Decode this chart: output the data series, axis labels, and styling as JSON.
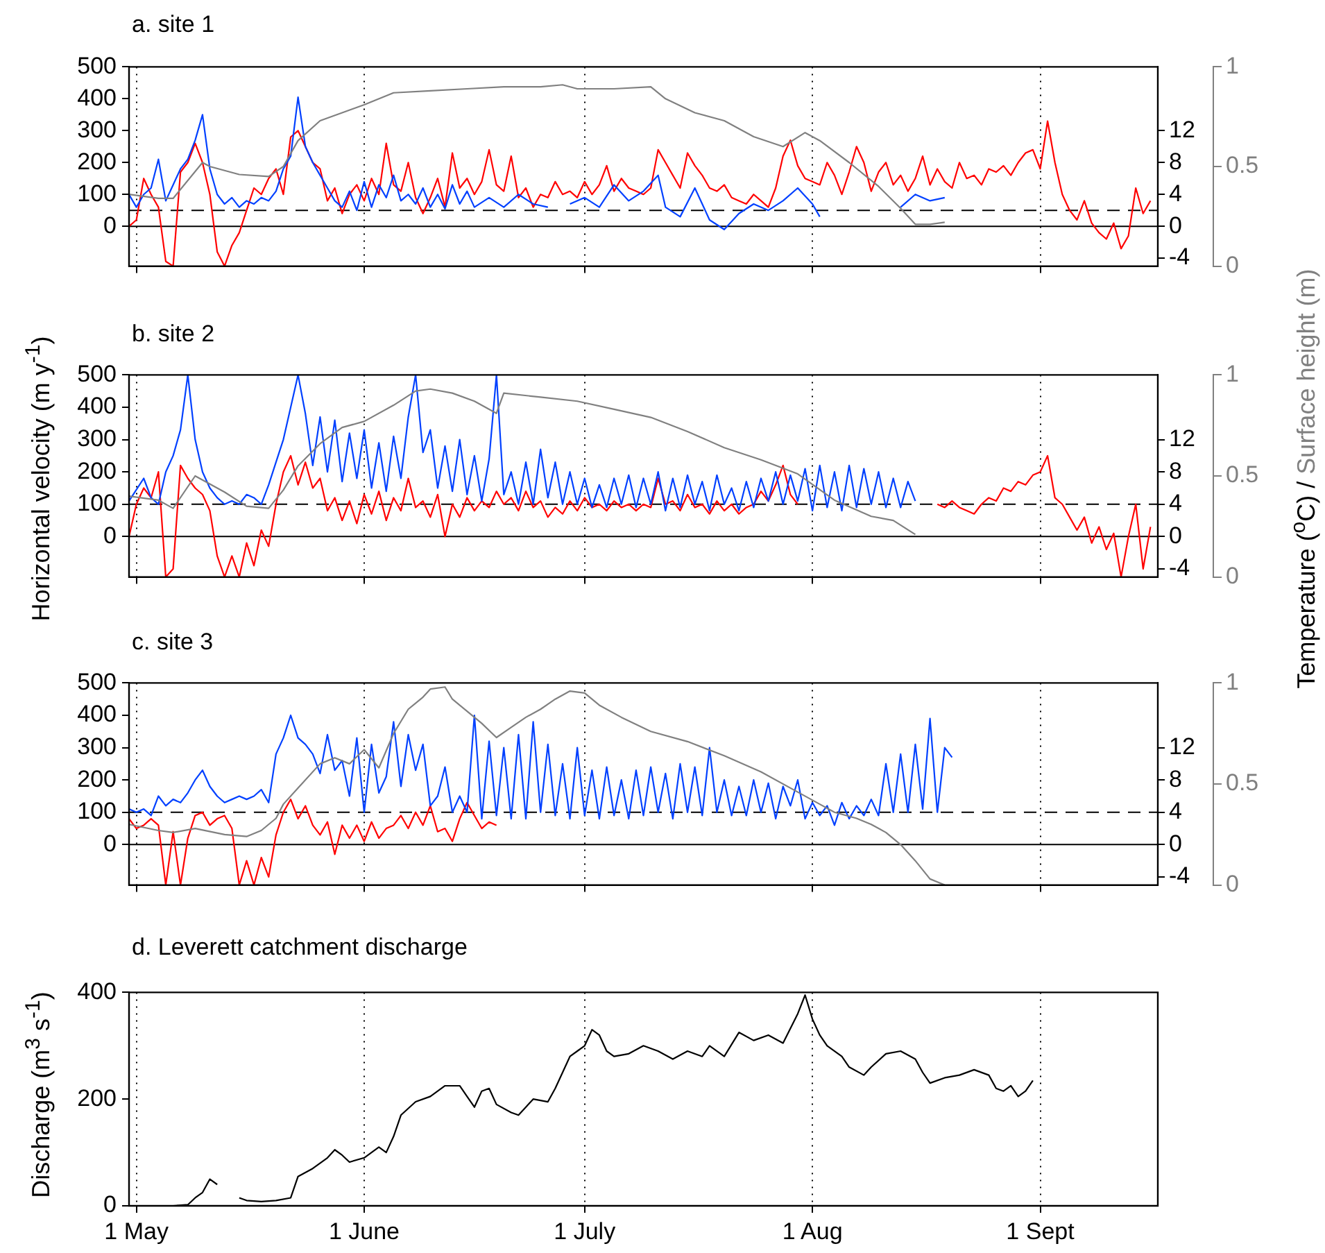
{
  "chart_data": [
    {
      "type": "line",
      "title": "a. site 1",
      "xlim": [
        "--04-30",
        "--09-17"
      ],
      "xticks": [
        {
          "value": "--05-01",
          "label": null
        },
        {
          "value": "--06-01",
          "label": null
        },
        {
          "value": "--07-01",
          "label": null
        },
        {
          "value": "--08-01",
          "label": null
        },
        {
          "value": "--09-01",
          "label": null
        }
      ],
      "ylim": [
        -125,
        500
      ],
      "yticks": [
        0,
        100,
        200,
        300,
        400,
        500
      ],
      "y2lim": [
        -5,
        20
      ],
      "y2ticks": [
        -4,
        0,
        4,
        8,
        12
      ],
      "y3lim": [
        0,
        1
      ],
      "y3ticks": [
        0,
        0.5,
        1
      ],
      "grid": "x",
      "tick_labels": "y",
      "ref_lines": [
        {
          "axis": "y",
          "value": 0,
          "color": "#000000",
          "line_style": "solid"
        },
        {
          "axis": "y",
          "value": 50,
          "color": "#000000",
          "line_style": "dashed"
        }
      ],
      "series": [
        {
          "color": "#ff0000",
          "axis": "y2",
          "x": [
            "--04-30",
            "--05-01",
            "--05-02",
            "--05-03",
            "--05-04",
            "--05-05",
            "--05-06",
            "--05-07",
            "--05-08",
            "--05-09",
            "--05-10",
            "--05-11",
            "--05-12",
            "--05-13",
            "--05-14",
            "--05-15",
            "--05-16",
            "--05-17",
            "--05-18",
            "--05-19",
            "--05-20",
            "--05-21",
            "--05-22",
            "--05-23",
            "--05-24",
            "--05-25",
            "--05-26",
            "--05-27",
            "--05-28",
            "--05-29",
            "--05-30",
            "--05-31",
            "--06-01",
            "--06-02",
            "--06-03",
            "--06-04",
            "--06-05",
            "--06-06",
            "--06-07",
            "--06-08",
            "--06-09",
            "--06-10",
            "--06-11",
            "--06-12",
            "--06-13",
            "--06-14",
            "--06-15",
            "--06-16",
            "--06-17",
            "--06-18",
            "--06-19",
            "--06-20",
            "--06-21",
            "--06-22",
            "--06-23",
            "--06-24",
            "--06-25",
            "--06-26",
            "--06-27",
            "--06-28",
            "--06-29",
            "--06-30",
            "--07-01",
            "--07-02",
            "--07-03",
            "--07-04",
            "--07-05",
            "--07-06",
            "--07-07",
            "--07-08",
            "--07-09",
            "--07-10",
            "--07-11",
            "--07-12",
            "--07-13",
            "--07-14",
            "--07-15",
            "--07-16",
            "--07-17",
            "--07-18",
            "--07-19",
            "--07-20",
            "--07-21",
            "--07-22",
            "--07-23",
            "--07-24",
            "--07-25",
            "--07-26",
            "--07-27",
            "--07-28",
            "--07-29",
            "--07-30",
            "--07-31",
            "--08-01",
            "--08-02",
            "--08-03",
            "--08-04",
            "--08-05",
            "--08-06",
            "--08-07",
            "--08-08",
            "--08-09",
            "--08-10",
            "--08-11",
            "--08-12",
            "--08-13",
            "--08-14",
            "--08-15",
            "--08-16",
            "--08-17",
            "--08-18",
            "--08-19",
            "--08-20",
            "--08-21",
            "--08-22",
            "--08-23",
            "--08-24",
            "--08-25",
            "--08-26",
            "--08-27",
            "--08-28",
            "--08-29",
            "--08-30",
            "--08-31",
            "--09-01",
            "--09-02",
            "--09-03",
            "--09-04",
            "--09-05",
            "--09-06",
            "--09-07",
            "--09-08",
            "--09-09",
            "--09-10",
            "--09-11",
            "--09-12",
            "--09-13",
            "--09-14",
            "--09-15",
            "--09-16"
          ],
          "values": [
            0,
            0.8,
            6,
            4,
            2.4,
            -4.4,
            -5,
            6.8,
            8,
            10.4,
            8,
            4,
            -3.2,
            -5,
            -2.4,
            -0.8,
            2,
            4.8,
            4,
            6,
            7.2,
            4,
            11.2,
            12,
            10,
            8,
            7.2,
            3.2,
            4.8,
            1.6,
            4,
            5.2,
            3.2,
            6,
            4,
            10.4,
            5.2,
            4.4,
            8,
            3.6,
            1.6,
            3.6,
            6,
            2.4,
            9.2,
            4.8,
            6,
            4,
            5.6,
            9.6,
            5.2,
            4.4,
            8.8,
            3.6,
            4.8,
            2.4,
            4,
            3.6,
            5.6,
            4,
            4.4,
            3.6,
            5.6,
            4,
            5.2,
            7.6,
            4.4,
            6,
            4.8,
            4.4,
            4,
            4.8,
            9.6,
            8,
            6.4,
            4.8,
            9.2,
            7.6,
            6.4,
            4.8,
            4.4,
            5.2,
            3.6,
            3.2,
            2.8,
            4,
            3.2,
            2.4,
            4.8,
            8.8,
            10.8,
            7.6,
            6,
            5.6,
            5.2,
            8,
            6.4,
            4,
            6.8,
            10,
            8,
            4.4,
            6.8,
            8,
            5.2,
            6.4,
            4.4,
            6,
            8.8,
            5.2,
            7.2,
            5.6,
            4.8,
            8,
            6,
            6.4,
            5.2,
            7.2,
            6.8,
            7.6,
            6.4,
            8,
            9.2,
            9.6,
            7.2,
            13.2,
            8,
            4,
            2,
            0.8,
            3.2,
            0.4,
            -0.8,
            -1.6,
            0.4,
            -2.8,
            -1.2,
            4.8,
            1.6,
            3.2
          ]
        },
        {
          "color": "#0040ff",
          "x": [
            "--04-30",
            "--05-01",
            "--05-02",
            "--05-03",
            "--05-04",
            "--05-05",
            "--05-06",
            "--05-07",
            "--05-08",
            "--05-09",
            "--05-10",
            "--05-11",
            "--05-12",
            "--05-13",
            "--05-14",
            "--05-15",
            "--05-16",
            "--05-17",
            "--05-18",
            "--05-19",
            "--05-20",
            "--05-21",
            "--05-22",
            "--05-23",
            "--05-24",
            "--05-25",
            "--05-26",
            "--05-27",
            "--05-28",
            "--05-29",
            "--05-30",
            "--05-31",
            "--06-01",
            "--06-02",
            "--06-03",
            "--06-04",
            "--06-05",
            "--06-06",
            "--06-07",
            "--06-08",
            "--06-09",
            "--06-10",
            "--06-11",
            "--06-12",
            "--06-13",
            "--06-14",
            "--06-15",
            "--06-16",
            "--06-18",
            "--06-20",
            "--06-22",
            "--06-24",
            "--06-26",
            "--06-27",
            "--06-29",
            "--07-01",
            "--07-03",
            "--07-05",
            "--07-07",
            "--07-09",
            "--07-11",
            "--07-12",
            "--07-14",
            "--07-16",
            "--07-18",
            "--07-20",
            "--07-22",
            "--07-24",
            "--07-26",
            "--07-28",
            "--07-30",
            "--08-01",
            "--08-02",
            "--08-04",
            "--08-13",
            "--08-15",
            "--08-17",
            "--08-19"
          ],
          "values": [
            100,
            60,
            100,
            120,
            210,
            80,
            130,
            180,
            210,
            270,
            350,
            180,
            100,
            70,
            90,
            60,
            80,
            70,
            90,
            80,
            110,
            180,
            220,
            405,
            250,
            200,
            160,
            120,
            80,
            60,
            110,
            50,
            140,
            60,
            130,
            90,
            160,
            80,
            100,
            70,
            120,
            60,
            100,
            55,
            130,
            70,
            110,
            60,
            90,
            60,
            100,
            70,
            60,
            null,
            70,
            90,
            60,
            130,
            80,
            110,
            160,
            60,
            30,
            120,
            20,
            -10,
            40,
            70,
            50,
            80,
            120,
            70,
            30,
            null,
            60,
            100,
            80,
            90
          ]
        },
        {
          "color": "#808080",
          "axis": "y3",
          "x": [
            "--04-30",
            "--05-04",
            "--05-06",
            "--05-10",
            "--05-11",
            "--05-15",
            "--05-19",
            "--05-21",
            "--05-23",
            "--05-26",
            "--05-29",
            "--06-01",
            "--06-05",
            "--06-10",
            "--06-15",
            "--06-20",
            "--06-25",
            "--06-28",
            "--06-30",
            "--07-05",
            "--07-10",
            "--07-12",
            "--07-16",
            "--07-20",
            "--07-24",
            "--07-28",
            "--07-31",
            "--08-02",
            "--08-06",
            "--08-10",
            "--08-13",
            "--08-15",
            "--08-17",
            "--08-19"
          ],
          "values": [
            0.36,
            0.34,
            0.34,
            0.52,
            0.5,
            0.46,
            0.45,
            0.5,
            0.63,
            0.73,
            0.77,
            0.81,
            0.87,
            0.88,
            0.89,
            0.9,
            0.9,
            0.91,
            0.89,
            0.89,
            0.9,
            0.84,
            0.77,
            0.73,
            0.65,
            0.6,
            0.67,
            0.63,
            0.52,
            0.4,
            0.29,
            0.21,
            0.21,
            0.22
          ]
        }
      ]
    },
    {
      "type": "line",
      "title": "b. site 2",
      "ylabel": "Horizontal velocity (m y$^{-1}$)",
      "y2label": "Temperature ($^{o}$C) /",
      "y3label": "Surface height (m)",
      "xlim": [
        "--04-30",
        "--09-17"
      ],
      "xticks": [
        {
          "value": "--05-01",
          "label": null
        },
        {
          "value": "--06-01",
          "label": null
        },
        {
          "value": "--07-01",
          "label": null
        },
        {
          "value": "--08-01",
          "label": null
        },
        {
          "value": "--09-01",
          "label": null
        }
      ],
      "ylim": [
        -125,
        500
      ],
      "yticks": [
        0,
        100,
        200,
        300,
        400,
        500
      ],
      "y2lim": [
        -5,
        20
      ],
      "y2ticks": [
        -4,
        0,
        4,
        8,
        12
      ],
      "y3lim": [
        0,
        1
      ],
      "y3ticks": [
        0,
        0.5,
        1
      ],
      "grid": "x",
      "tick_labels": "y",
      "ref_lines": [
        {
          "axis": "y",
          "value": 0,
          "color": "#000000",
          "line_style": "solid"
        },
        {
          "axis": "y",
          "value": 100,
          "color": "#000000",
          "line_style": "dashed"
        }
      ],
      "series": [
        {
          "color": "#ff0000",
          "axis": "y2",
          "x": [
            "--04-30",
            "--05-01",
            "--05-02",
            "--05-03",
            "--05-04",
            "--05-05",
            "--05-06",
            "--05-07",
            "--05-08",
            "--05-09",
            "--05-10",
            "--05-11",
            "--05-12",
            "--05-13",
            "--05-14",
            "--05-15",
            "--05-16",
            "--05-17",
            "--05-18",
            "--05-19",
            "--05-20",
            "--05-21",
            "--05-22",
            "--05-23",
            "--05-24",
            "--05-25",
            "--05-26",
            "--05-27",
            "--05-28",
            "--05-29",
            "--05-30",
            "--05-31",
            "--06-01",
            "--06-02",
            "--06-03",
            "--06-04",
            "--06-05",
            "--06-06",
            "--06-07",
            "--06-08",
            "--06-09",
            "--06-10",
            "--06-11",
            "--06-12",
            "--06-13",
            "--06-14",
            "--06-15",
            "--06-16",
            "--06-17",
            "--06-18",
            "--06-19",
            "--06-20",
            "--06-21",
            "--06-22",
            "--06-23",
            "--06-24",
            "--06-25",
            "--06-26",
            "--06-27",
            "--06-28",
            "--06-29",
            "--06-30",
            "--07-01",
            "--07-02",
            "--07-03",
            "--07-04",
            "--07-05",
            "--07-06",
            "--07-07",
            "--07-08",
            "--07-09",
            "--07-10",
            "--07-11",
            "--07-12",
            "--07-13",
            "--07-14",
            "--07-15",
            "--07-16",
            "--07-17",
            "--07-18",
            "--07-19",
            "--07-20",
            "--07-21",
            "--07-22",
            "--07-23",
            "--07-24",
            "--07-25",
            "--07-26",
            "--07-27",
            "--07-28",
            "--07-29",
            "--07-30",
            "--08-09",
            "--08-18",
            "--08-19",
            "--08-20",
            "--08-21",
            "--08-22",
            "--08-23",
            "--08-24",
            "--08-25",
            "--08-26",
            "--08-27",
            "--08-28",
            "--08-29",
            "--08-30",
            "--08-31",
            "--09-01",
            "--09-02",
            "--09-03",
            "--09-04",
            "--09-05",
            "--09-06",
            "--09-07",
            "--09-08",
            "--09-09",
            "--09-10",
            "--09-11",
            "--09-12",
            "--09-13",
            "--09-14",
            "--09-15",
            "--09-16"
          ],
          "values": [
            0,
            4,
            6,
            4.8,
            8,
            -5,
            -4,
            8.8,
            7.2,
            6,
            5.2,
            3.2,
            -2.4,
            -5,
            -2.4,
            -5,
            -0.8,
            -3.6,
            0.8,
            -1.2,
            4,
            8,
            10,
            6.4,
            9.2,
            6,
            7.2,
            3.2,
            4.8,
            2,
            4.4,
            1.6,
            5.2,
            2.8,
            5.6,
            2,
            4.8,
            3.2,
            7.2,
            3.6,
            4.4,
            2.4,
            5.2,
            0,
            4,
            2.4,
            4.8,
            3.2,
            4.4,
            3.6,
            5.6,
            4,
            4.8,
            3.2,
            5.6,
            3.6,
            4.4,
            2.4,
            3.6,
            2.8,
            4.4,
            3.2,
            4.8,
            3.6,
            4,
            3.2,
            4.4,
            3.6,
            4,
            3.2,
            4,
            3.6,
            7.2,
            4,
            4.4,
            3.2,
            5.2,
            3.6,
            4,
            2.8,
            4.4,
            3.2,
            4,
            2.8,
            3.6,
            4,
            5.6,
            4.4,
            6.4,
            8.8,
            5.2,
            4,
            null,
            4,
            3.6,
            4.4,
            3.6,
            3.2,
            2.8,
            4,
            4.8,
            4.4,
            6,
            5.6,
            6.8,
            6.4,
            7.6,
            8,
            10,
            4.8,
            4,
            2.4,
            0.8,
            2.4,
            -0.8,
            1.2,
            -1.6,
            0.4,
            -5,
            0,
            4,
            -4,
            1.2
          ]
        },
        {
          "color": "#0040ff",
          "x": [
            "--04-30",
            "--05-02",
            "--05-03",
            "--05-04",
            "--05-05",
            "--05-06",
            "--05-07",
            "--05-08",
            "--05-09",
            "--05-10",
            "--05-11",
            "--05-12",
            "--05-13",
            "--05-14",
            "--05-15",
            "--05-16",
            "--05-17",
            "--05-18",
            "--05-19",
            "--05-20",
            "--05-21",
            "--05-22",
            "--05-23",
            "--05-24",
            "--05-25",
            "--05-26",
            "--05-27",
            "--05-28",
            "--05-29",
            "--05-30",
            "--05-31",
            "--06-01",
            "--06-02",
            "--06-03",
            "--06-04",
            "--06-05",
            "--06-06",
            "--06-07",
            "--06-08",
            "--06-09",
            "--06-10",
            "--06-11",
            "--06-12",
            "--06-13",
            "--06-14",
            "--06-15",
            "--06-16",
            "--06-17",
            "--06-18",
            "--06-19",
            "--06-20",
            "--06-21",
            "--06-22",
            "--06-23",
            "--06-24",
            "--06-25",
            "--06-26",
            "--06-27",
            "--06-28",
            "--06-29",
            "--06-30",
            "--07-01",
            "--07-02",
            "--07-03",
            "--07-04",
            "--07-05",
            "--07-06",
            "--07-07",
            "--07-08",
            "--07-09",
            "--07-10",
            "--07-11",
            "--07-12",
            "--07-13",
            "--07-14",
            "--07-15",
            "--07-16",
            "--07-17",
            "--07-18",
            "--07-19",
            "--07-20",
            "--07-21",
            "--07-22",
            "--07-23",
            "--07-24",
            "--07-25",
            "--07-26",
            "--07-27",
            "--07-28",
            "--07-29",
            "--07-30",
            "--07-31",
            "--08-01",
            "--08-02",
            "--08-03",
            "--08-04",
            "--08-05",
            "--08-06",
            "--08-07",
            "--08-08",
            "--08-09",
            "--08-10",
            "--08-11",
            "--08-12",
            "--08-13",
            "--08-14",
            "--08-15"
          ],
          "values": [
            110,
            180,
            120,
            100,
            200,
            250,
            330,
            500,
            300,
            200,
            150,
            120,
            100,
            110,
            100,
            130,
            120,
            100,
            160,
            230,
            300,
            400,
            500,
            380,
            220,
            370,
            200,
            360,
            170,
            320,
            180,
            330,
            150,
            290,
            140,
            310,
            180,
            370,
            500,
            260,
            330,
            150,
            280,
            140,
            300,
            130,
            250,
            110,
            240,
            500,
            130,
            200,
            100,
            230,
            100,
            270,
            120,
            230,
            100,
            200,
            100,
            180,
            90,
            160,
            90,
            180,
            100,
            190,
            90,
            180,
            100,
            200,
            80,
            180,
            90,
            190,
            100,
            170,
            80,
            190,
            100,
            150,
            80,
            170,
            90,
            180,
            110,
            200,
            100,
            190,
            110,
            210,
            80,
            220,
            90,
            200,
            80,
            220,
            90,
            210,
            100,
            200,
            90,
            180,
            90,
            170,
            110
          ]
        },
        {
          "color": "#808080",
          "axis": "y3",
          "x": [
            "--04-30",
            "--05-04",
            "--05-06",
            "--05-09",
            "--05-13",
            "--05-16",
            "--05-19",
            "--05-21",
            "--05-23",
            "--05-26",
            "--05-29",
            "--06-01",
            "--06-05",
            "--06-08",
            "--06-10",
            "--06-13",
            "--06-16",
            "--06-19",
            "--06-20",
            "--06-25",
            "--06-30",
            "--07-05",
            "--07-10",
            "--07-15",
            "--07-20",
            "--07-25",
            "--07-30",
            "--08-04",
            "--08-09",
            "--08-12",
            "--08-15"
          ],
          "values": [
            0.4,
            0.38,
            0.34,
            0.5,
            0.42,
            0.35,
            0.34,
            0.43,
            0.55,
            0.66,
            0.74,
            0.77,
            0.85,
            0.92,
            0.93,
            0.91,
            0.87,
            0.81,
            0.91,
            0.89,
            0.87,
            0.83,
            0.79,
            0.72,
            0.64,
            0.58,
            0.51,
            0.38,
            0.3,
            0.28,
            0.21
          ]
        }
      ]
    },
    {
      "type": "line",
      "title": "c. site 3",
      "xlim": [
        "--04-30",
        "--09-17"
      ],
      "xticks": [
        {
          "value": "--05-01",
          "label": null
        },
        {
          "value": "--06-01",
          "label": null
        },
        {
          "value": "--07-01",
          "label": null
        },
        {
          "value": "--08-01",
          "label": null
        },
        {
          "value": "--09-01",
          "label": null
        }
      ],
      "ylim": [
        -125,
        500
      ],
      "yticks": [
        0,
        100,
        200,
        300,
        400,
        500
      ],
      "y2lim": [
        -5,
        20
      ],
      "y2ticks": [
        -4,
        0,
        4,
        8,
        12
      ],
      "y3lim": [
        0,
        1
      ],
      "y3ticks": [
        0,
        0.5,
        1
      ],
      "grid": "x",
      "tick_labels": "y",
      "ref_lines": [
        {
          "axis": "y",
          "value": 0,
          "color": "#000000",
          "line_style": "solid"
        },
        {
          "axis": "y",
          "value": 100,
          "color": "#000000",
          "line_style": "dashed"
        }
      ],
      "series": [
        {
          "color": "#ff0000",
          "axis": "y2",
          "x": [
            "--04-30",
            "--05-01",
            "--05-02",
            "--05-03",
            "--05-04",
            "--05-05",
            "--05-06",
            "--05-07",
            "--05-08",
            "--05-09",
            "--05-10",
            "--05-11",
            "--05-12",
            "--05-13",
            "--05-14",
            "--05-15",
            "--05-16",
            "--05-17",
            "--05-18",
            "--05-19",
            "--05-20",
            "--05-21",
            "--05-22",
            "--05-23",
            "--05-24",
            "--05-25",
            "--05-26",
            "--05-27",
            "--05-28",
            "--05-29",
            "--05-30",
            "--05-31",
            "--06-01",
            "--06-02",
            "--06-03",
            "--06-04",
            "--06-05",
            "--06-06",
            "--06-07",
            "--06-08",
            "--06-09",
            "--06-10",
            "--06-11",
            "--06-12",
            "--06-13",
            "--06-14",
            "--06-15",
            "--06-16",
            "--06-17",
            "--06-18",
            "--06-19"
          ],
          "values": [
            3.2,
            2,
            2.4,
            3.2,
            2.4,
            -5,
            1.6,
            -5,
            0.8,
            3.6,
            4,
            2.4,
            3.2,
            3.6,
            2,
            -5,
            -2,
            -5,
            -1.6,
            -4,
            1.2,
            4,
            5.6,
            3.2,
            4.8,
            2.4,
            1.2,
            2.8,
            -1.2,
            2.4,
            0.8,
            2.4,
            0.4,
            2.8,
            0.8,
            2,
            2.4,
            3.6,
            2,
            4,
            2.4,
            4.8,
            1.6,
            2,
            0.4,
            3.2,
            5.2,
            3.6,
            2,
            2.8,
            2.4
          ]
        },
        {
          "color": "#0040ff",
          "x": [
            "--04-30",
            "--05-01",
            "--05-02",
            "--05-03",
            "--05-04",
            "--05-05",
            "--05-06",
            "--05-07",
            "--05-08",
            "--05-09",
            "--05-10",
            "--05-11",
            "--05-12",
            "--05-13",
            "--05-14",
            "--05-15",
            "--05-16",
            "--05-17",
            "--05-18",
            "--05-19",
            "--05-20",
            "--05-21",
            "--05-22",
            "--05-23",
            "--05-24",
            "--05-25",
            "--05-26",
            "--05-27",
            "--05-28",
            "--05-29",
            "--05-30",
            "--05-31",
            "--06-01",
            "--06-02",
            "--06-03",
            "--06-04",
            "--06-05",
            "--06-06",
            "--06-07",
            "--06-08",
            "--06-09",
            "--06-10",
            "--06-11",
            "--06-12",
            "--06-13",
            "--06-14",
            "--06-15",
            "--06-16",
            "--06-17",
            "--06-18",
            "--06-19",
            "--06-20",
            "--06-21",
            "--06-22",
            "--06-23",
            "--06-24",
            "--06-25",
            "--06-26",
            "--06-27",
            "--06-28",
            "--06-29",
            "--06-30",
            "--07-01",
            "--07-02",
            "--07-03",
            "--07-04",
            "--07-05",
            "--07-06",
            "--07-07",
            "--07-08",
            "--07-09",
            "--07-10",
            "--07-11",
            "--07-12",
            "--07-13",
            "--07-14",
            "--07-15",
            "--07-16",
            "--07-17",
            "--07-18",
            "--07-19",
            "--07-20",
            "--07-21",
            "--07-22",
            "--07-23",
            "--07-24",
            "--07-25",
            "--07-26",
            "--07-27",
            "--07-28",
            "--07-29",
            "--07-30",
            "--07-31",
            "--08-01",
            "--08-02",
            "--08-03",
            "--08-04",
            "--08-05",
            "--08-06",
            "--08-07",
            "--08-08",
            "--08-09",
            "--08-10",
            "--08-11",
            "--08-12",
            "--08-13",
            "--08-14",
            "--08-15",
            "--08-16",
            "--08-17",
            "--08-18",
            "--08-19",
            "--08-20"
          ],
          "values": [
            110,
            100,
            110,
            90,
            150,
            120,
            140,
            130,
            160,
            200,
            230,
            180,
            150,
            130,
            140,
            150,
            140,
            150,
            170,
            130,
            280,
            330,
            400,
            330,
            310,
            280,
            220,
            340,
            230,
            260,
            150,
            330,
            100,
            310,
            160,
            210,
            380,
            180,
            340,
            230,
            310,
            120,
            150,
            240,
            100,
            150,
            100,
            400,
            80,
            320,
            90,
            300,
            80,
            340,
            80,
            380,
            100,
            310,
            90,
            250,
            80,
            300,
            90,
            230,
            80,
            240,
            90,
            200,
            80,
            230,
            90,
            240,
            100,
            220,
            80,
            250,
            100,
            240,
            90,
            300,
            100,
            200,
            90,
            180,
            90,
            200,
            100,
            190,
            80,
            180,
            120,
            200,
            80,
            130,
            90,
            120,
            60,
            130,
            80,
            120,
            90,
            140,
            90,
            250,
            100,
            280,
            100,
            310,
            110,
            390,
            100,
            300,
            270
          ]
        },
        {
          "color": "#808080",
          "axis": "y3",
          "x": [
            "--04-30",
            "--05-04",
            "--05-06",
            "--05-09",
            "--05-13",
            "--05-16",
            "--05-18",
            "--05-20",
            "--05-21",
            "--05-23",
            "--05-26",
            "--05-28",
            "--05-30",
            "--06-01",
            "--06-03",
            "--06-05",
            "--06-07",
            "--06-09",
            "--06-10",
            "--06-12",
            "--06-13",
            "--06-15",
            "--06-17",
            "--06-19",
            "--06-21",
            "--06-23",
            "--06-25",
            "--06-27",
            "--06-29",
            "--07-01",
            "--07-03",
            "--07-06",
            "--07-10",
            "--07-15",
            "--07-20",
            "--07-25",
            "--07-30",
            "--08-02",
            "--08-04",
            "--08-07",
            "--08-09",
            "--08-11",
            "--08-13",
            "--08-15",
            "--08-17",
            "--08-19"
          ],
          "values": [
            0.3,
            0.27,
            0.26,
            0.28,
            0.25,
            0.24,
            0.27,
            0.33,
            0.4,
            0.48,
            0.6,
            0.63,
            0.6,
            0.67,
            0.58,
            0.75,
            0.87,
            0.93,
            0.97,
            0.98,
            0.92,
            0.86,
            0.8,
            0.73,
            0.78,
            0.83,
            0.87,
            0.92,
            0.96,
            0.95,
            0.89,
            0.83,
            0.76,
            0.71,
            0.64,
            0.56,
            0.46,
            0.4,
            0.36,
            0.33,
            0.3,
            0.26,
            0.2,
            0.12,
            0.03,
            0
          ]
        }
      ]
    },
    {
      "type": "line",
      "title": "d. Leverett catchment discharge",
      "ylabel": "Discharge (m$^{3}$ s$^{-1}$)",
      "xlim": [
        "--04-30",
        "--09-17"
      ],
      "xticks": [
        {
          "value": "--05-01",
          "label": "1 May"
        },
        {
          "value": "--06-01",
          "label": "1 June"
        },
        {
          "value": "--07-01",
          "label": "1 July"
        },
        {
          "value": "--08-01",
          "label": "1 Aug"
        },
        {
          "value": "--09-01",
          "label": "1 Sept"
        }
      ],
      "ylim": [
        0,
        400
      ],
      "yticks": [
        0,
        200,
        400
      ],
      "grid": "x",
      "series": [
        {
          "color": "#000000",
          "x": [
            "--05-06",
            "--05-08",
            "--05-09",
            "--05-10",
            "--05-11",
            "--05-12",
            "--05-13",
            "--05-15",
            "--05-16",
            "--05-18",
            "--05-20",
            "--05-22",
            "--05-23",
            "--05-25",
            "--05-27",
            "--05-28",
            "--05-29",
            "--05-30",
            "--06-01",
            "--06-02",
            "--06-03",
            "--06-04",
            "--06-05",
            "--06-06",
            "--06-08",
            "--06-10",
            "--06-12",
            "--06-14",
            "--06-15",
            "--06-16",
            "--06-17",
            "--06-18",
            "--06-19",
            "--06-21",
            "--06-22",
            "--06-23",
            "--06-24",
            "--06-26",
            "--06-27",
            "--06-28",
            "--06-29",
            "--06-30",
            "--07-01",
            "--07-02",
            "--07-03",
            "--07-04",
            "--07-05",
            "--07-07",
            "--07-09",
            "--07-11",
            "--07-13",
            "--07-15",
            "--07-17",
            "--07-18",
            "--07-20",
            "--07-22",
            "--07-24",
            "--07-26",
            "--07-28",
            "--07-30",
            "--07-31",
            "--08-01",
            "--08-02",
            "--08-03",
            "--08-05",
            "--08-06",
            "--08-08",
            "--08-09",
            "--08-11",
            "--08-13",
            "--08-15",
            "--08-16",
            "--08-17",
            "--08-19",
            "--08-21",
            "--08-23",
            "--08-25",
            "--08-26",
            "--08-27",
            "--08-28",
            "--08-29",
            "--08-30",
            "--08-31"
          ],
          "values": [
            0,
            2,
            15,
            25,
            50,
            40,
            null,
            15,
            10,
            8,
            10,
            15,
            55,
            70,
            90,
            105,
            95,
            82,
            90,
            100,
            110,
            100,
            130,
            170,
            195,
            205,
            225,
            225,
            205,
            185,
            215,
            220,
            190,
            175,
            170,
            185,
            200,
            195,
            220,
            250,
            280,
            290,
            300,
            330,
            320,
            290,
            280,
            285,
            300,
            290,
            275,
            290,
            280,
            300,
            280,
            325,
            310,
            320,
            305,
            360,
            395,
            350,
            320,
            300,
            280,
            260,
            245,
            260,
            285,
            290,
            275,
            250,
            230,
            240,
            245,
            255,
            245,
            220,
            215,
            225,
            205,
            215,
            235
          ]
        }
      ]
    }
  ]
}
